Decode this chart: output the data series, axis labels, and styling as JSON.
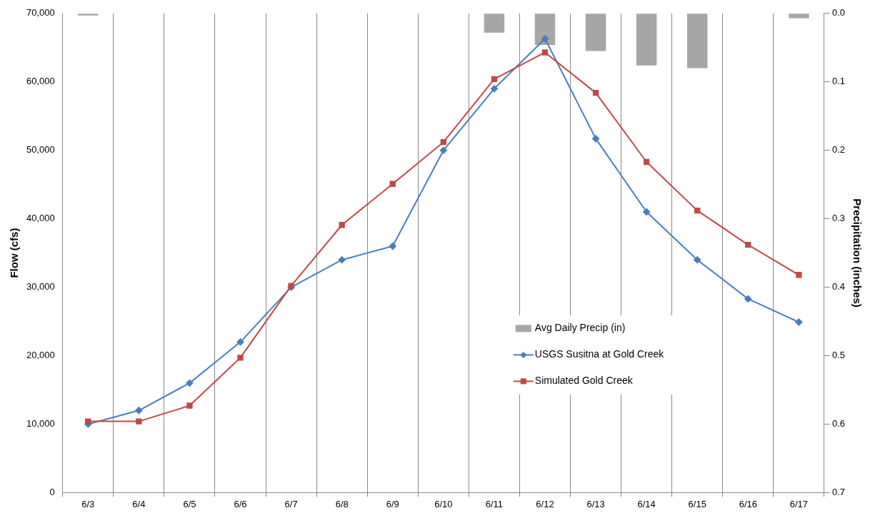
{
  "chart_data": {
    "type": "line",
    "xlabel": null,
    "ylabel": "Flow (cfs)",
    "y2label": "Precipitation (inches)",
    "categories": [
      "6/3",
      "6/4",
      "6/5",
      "6/6",
      "6/7",
      "6/8",
      "6/9",
      "6/10",
      "6/11",
      "6/12",
      "6/13",
      "6/14",
      "6/15",
      "6/16",
      "6/17"
    ],
    "series": [
      {
        "name": "Avg Daily Precip (in)",
        "type": "bar",
        "axis": "y2",
        "color": "#a6a6a6",
        "values": [
          0.003,
          0,
          0,
          0,
          0,
          0,
          0,
          0,
          0.028,
          0.046,
          0.055,
          0.076,
          0.08,
          0,
          0.007
        ]
      },
      {
        "name": "USGS Susitna at Gold Creek",
        "color": "#4a7ebb",
        "marker": "diamond",
        "values": [
          10000,
          12000,
          16000,
          22000,
          30000,
          34000,
          36000,
          50000,
          59000,
          66300,
          51700,
          41000,
          34000,
          28300,
          24900
        ]
      },
      {
        "name": "Simulated Gold Creek",
        "color": "#be4b48",
        "marker": "square",
        "values": [
          10400,
          10400,
          12700,
          19700,
          30200,
          39100,
          45100,
          51200,
          60400,
          64300,
          58400,
          48300,
          41200,
          36200,
          31800
        ]
      }
    ],
    "ylim": [
      0,
      70000
    ],
    "yticks": [
      {
        "value": 0,
        "label": "0"
      },
      {
        "value": 10000,
        "label": "10,000"
      },
      {
        "value": 20000,
        "label": "20,000"
      },
      {
        "value": 30000,
        "label": "30,000"
      },
      {
        "value": 40000,
        "label": "40,000"
      },
      {
        "value": 50000,
        "label": "50,000"
      },
      {
        "value": 60000,
        "label": "60,000"
      },
      {
        "value": 70000,
        "label": "70,000"
      }
    ],
    "y2lim": [
      0.7,
      0
    ],
    "y2ticks": [
      {
        "value": 0,
        "label": "0.0"
      },
      {
        "value": 0.1,
        "label": "0.1"
      },
      {
        "value": 0.2,
        "label": "0.2"
      },
      {
        "value": 0.3,
        "label": "0.3"
      },
      {
        "value": 0.4,
        "label": "0.4"
      },
      {
        "value": 0.5,
        "label": "0.5"
      },
      {
        "value": 0.6,
        "label": "0.6"
      },
      {
        "value": 0.7,
        "label": "0.7"
      }
    ],
    "grid": "x",
    "legend": "center right",
    "line_style": "solid"
  }
}
